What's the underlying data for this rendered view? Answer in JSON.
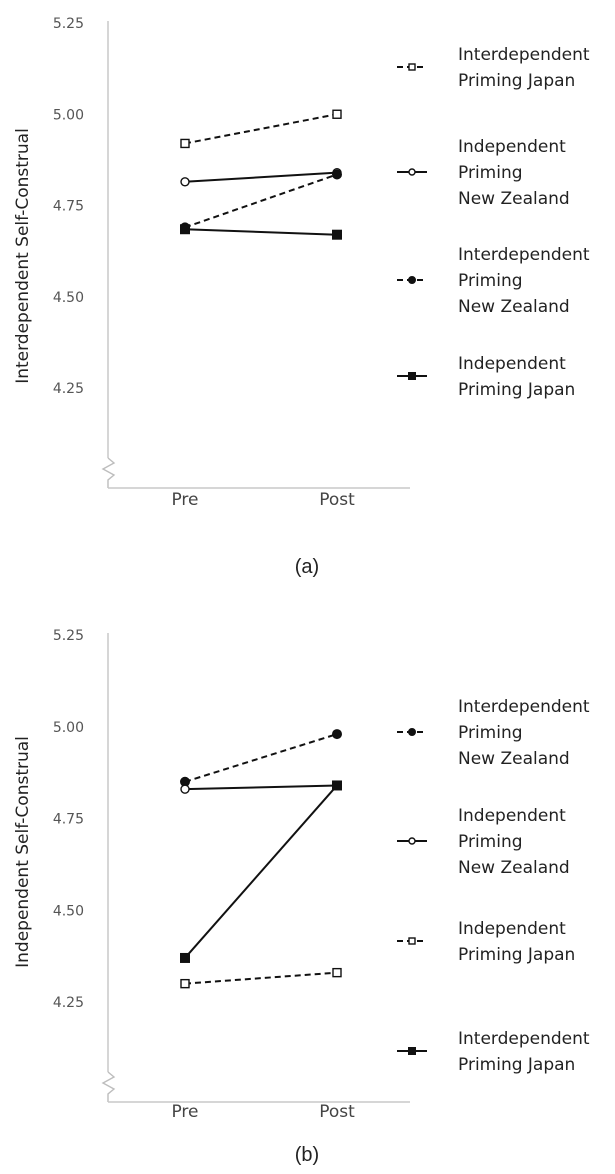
{
  "chart_data": [
    {
      "type": "line",
      "panel_label": "(a)",
      "ylabel": "Interdependent Self-Construal",
      "categories": [
        "Pre",
        "Post"
      ],
      "ylim": [
        4.1,
        5.25
      ],
      "yticks": [
        "5.25",
        "5.00",
        "4.75",
        "4.50",
        "4.25"
      ],
      "yticks_values": [
        5.25,
        5.0,
        4.75,
        4.5,
        4.25
      ],
      "series": [
        {
          "name": "Interdependent Priming Japan",
          "legend_lines": [
            "Interdependent",
            "Priming Japan"
          ],
          "values": [
            4.92,
            5.0
          ],
          "line": "dashed",
          "marker": "open-square"
        },
        {
          "name": "Independent Priming New Zealand",
          "legend_lines": [
            "Independent",
            "Priming",
            "New Zealand"
          ],
          "values": [
            4.815,
            4.84
          ],
          "line": "solid",
          "marker": "open-circle"
        },
        {
          "name": "Interdependent Priming New Zealand",
          "legend_lines": [
            "Interdependent",
            "Priming",
            "New Zealand"
          ],
          "values": [
            4.69,
            4.835
          ],
          "line": "dashed",
          "marker": "filled-circle"
        },
        {
          "name": "Independent Priming Japan",
          "legend_lines": [
            "Independent",
            "Priming Japan"
          ],
          "values": [
            4.685,
            4.67
          ],
          "line": "solid",
          "marker": "filled-square"
        }
      ]
    },
    {
      "type": "line",
      "panel_label": "(b)",
      "ylabel": "Independent Self-Construal",
      "categories": [
        "Pre",
        "Post"
      ],
      "ylim": [
        4.1,
        5.25
      ],
      "yticks": [
        "5.25",
        "5.00",
        "4.75",
        "4.50",
        "4.25"
      ],
      "yticks_values": [
        5.25,
        5.0,
        4.75,
        4.5,
        4.25
      ],
      "series": [
        {
          "name": "Interdependent Priming New Zealand",
          "legend_lines": [
            "Interdependent",
            "Priming",
            "New Zealand"
          ],
          "values": [
            4.85,
            4.98
          ],
          "line": "dashed",
          "marker": "filled-circle"
        },
        {
          "name": "Independent Priming New Zealand",
          "legend_lines": [
            "Independent",
            "Priming",
            "New Zealand"
          ],
          "values": [
            4.83,
            4.84
          ],
          "line": "solid",
          "marker": "open-circle"
        },
        {
          "name": "Independent Priming Japan",
          "legend_lines": [
            "Independent",
            "Priming Japan"
          ],
          "values": [
            4.3,
            4.33
          ],
          "line": "dashed",
          "marker": "open-square"
        },
        {
          "name": "Interdependent Priming Japan",
          "legend_lines": [
            "Interdependent",
            "Priming Japan"
          ],
          "values": [
            4.37,
            4.84
          ],
          "line": "solid",
          "marker": "filled-square"
        }
      ]
    }
  ]
}
